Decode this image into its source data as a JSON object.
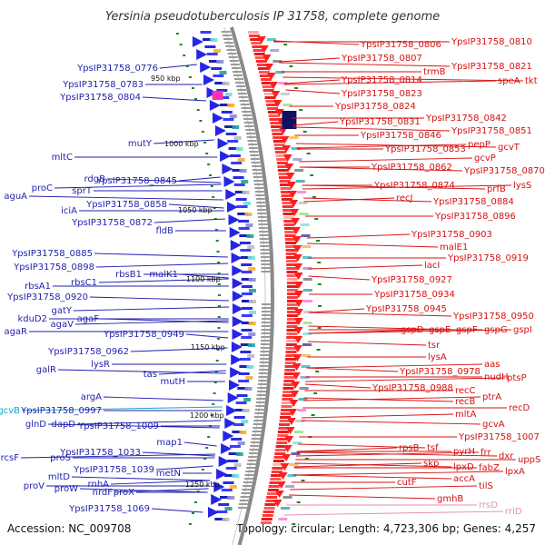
{
  "title": "Yersinia pseudotuberculosis IP 31758, complete genome",
  "accession": "Accession: NC_009708",
  "summary": "Topology: circular; Length: 4,723,306 bp; Genes: 4,257",
  "colors": {
    "left_label": "#1f1fb0",
    "right_label": "#d61010",
    "cyan_label": "#1aa3c9",
    "faded_label": "#e38fb6"
  },
  "kbp_marks": [
    {
      "text": "950 kbp"
    },
    {
      "text": "1000 kbp"
    },
    {
      "text": "1050 kbp"
    },
    {
      "text": "1100 kbp"
    },
    {
      "text": "1150 kbp"
    },
    {
      "text": "1200 kbp"
    },
    {
      "text": "1250 kbp"
    }
  ],
  "left_labels": [
    {
      "text": "YpsIP31758_0776"
    },
    {
      "text": "YpsIP31758_0783"
    },
    {
      "text": "YpsIP31758_0804"
    },
    {
      "text": "mutY"
    },
    {
      "text": "mltC"
    },
    {
      "text": "rdgB"
    },
    {
      "text": "proC"
    },
    {
      "text": "sprT"
    },
    {
      "text": "aguA"
    },
    {
      "text": "YpsIP31758_0845"
    },
    {
      "text": "iciA"
    },
    {
      "text": "YpsIP31758_0858"
    },
    {
      "text": "YpsIP31758_0872"
    },
    {
      "text": "fldB"
    },
    {
      "text": "YpsIP31758_0885"
    },
    {
      "text": "YpsIP31758_0898"
    },
    {
      "text": "rbsB1"
    },
    {
      "text": "malK1"
    },
    {
      "text": "rbsC1"
    },
    {
      "text": "rbsA1"
    },
    {
      "text": "YpsIP31758_0920"
    },
    {
      "text": "gatY"
    },
    {
      "text": "kduD2"
    },
    {
      "text": "agaF"
    },
    {
      "text": "agaV"
    },
    {
      "text": "agaR"
    },
    {
      "text": "YpsIP31758_0949"
    },
    {
      "text": "YpsIP31758_0962"
    },
    {
      "text": "lysR"
    },
    {
      "text": "galR"
    },
    {
      "text": "tas"
    },
    {
      "text": "mutH"
    },
    {
      "text": "argA"
    },
    {
      "text": "gcvB"
    },
    {
      "text": "YpsIP31758_0997"
    },
    {
      "text": "glnD"
    },
    {
      "text": "dapD"
    },
    {
      "text": "YpsIP31758_1009"
    },
    {
      "text": "map1"
    },
    {
      "text": "rcsF"
    },
    {
      "text": "proS"
    },
    {
      "text": "YpsIP31758_1033"
    },
    {
      "text": "YpsIP31758_1039"
    },
    {
      "text": "metN"
    },
    {
      "text": "mltD"
    },
    {
      "text": "rnhA"
    },
    {
      "text": "proV"
    },
    {
      "text": "proW"
    },
    {
      "text": "nrdF"
    },
    {
      "text": "proX"
    },
    {
      "text": "YpsIP31758_1069"
    }
  ],
  "right_labels": [
    {
      "text": "YpsIP31758_0806"
    },
    {
      "text": "YpsIP31758_0810"
    },
    {
      "text": "YpsIP31758_0807"
    },
    {
      "text": "YpsIP31758_0821"
    },
    {
      "text": "trmB"
    },
    {
      "text": "YpsIP31758_0814"
    },
    {
      "text": "YpsIP31758_0823"
    },
    {
      "text": "YpsIP31758_0824"
    },
    {
      "text": "speA"
    },
    {
      "text": "tkt"
    },
    {
      "text": "YpsIP31758_0842"
    },
    {
      "text": "YpsIP31758_0831"
    },
    {
      "text": "YpsIP31758_0851"
    },
    {
      "text": "YpsIP31758_0846"
    },
    {
      "text": "pepP"
    },
    {
      "text": "gcvT"
    },
    {
      "text": "YpsIP31758_0853"
    },
    {
      "text": "gcvP"
    },
    {
      "text": "YpsIP31758_0870"
    },
    {
      "text": "YpsIP31758_0862"
    },
    {
      "text": "lysS"
    },
    {
      "text": "prfB"
    },
    {
      "text": "YpsIP31758_0874"
    },
    {
      "text": "recJ"
    },
    {
      "text": "YpsIP31758_0884"
    },
    {
      "text": "YpsIP31758_0896"
    },
    {
      "text": "YpsIP31758_0903"
    },
    {
      "text": "malE1"
    },
    {
      "text": "YpsIP31758_0919"
    },
    {
      "text": "lacI"
    },
    {
      "text": "YpsIP31758_0927"
    },
    {
      "text": "YpsIP31758_0934"
    },
    {
      "text": "YpsIP31758_0945"
    },
    {
      "text": "YpsIP31758_0950"
    },
    {
      "text": "gspD"
    },
    {
      "text": "gspE"
    },
    {
      "text": "gspF"
    },
    {
      "text": "gspG"
    },
    {
      "text": "gspI"
    },
    {
      "text": "tsr"
    },
    {
      "text": "lysA"
    },
    {
      "text": "aas"
    },
    {
      "text": "YpsIP31758_0978"
    },
    {
      "text": "nudH"
    },
    {
      "text": "ptsP"
    },
    {
      "text": "YpsIP31758_0988"
    },
    {
      "text": "recC"
    },
    {
      "text": "ptrA"
    },
    {
      "text": "recB"
    },
    {
      "text": "recD"
    },
    {
      "text": "mltA"
    },
    {
      "text": "gcvA"
    },
    {
      "text": "YpsIP31758_1007"
    },
    {
      "text": "rpsB"
    },
    {
      "text": "tsf"
    },
    {
      "text": "pyrH"
    },
    {
      "text": "frr"
    },
    {
      "text": "dxr"
    },
    {
      "text": "uppS"
    },
    {
      "text": "skp"
    },
    {
      "text": "lpxD"
    },
    {
      "text": "fabZ"
    },
    {
      "text": "lpxA"
    },
    {
      "text": "accA"
    },
    {
      "text": "cutF"
    },
    {
      "text": "tilS"
    },
    {
      "text": "gmhB"
    },
    {
      "text": "rrsD"
    },
    {
      "text": "rrlD"
    }
  ]
}
